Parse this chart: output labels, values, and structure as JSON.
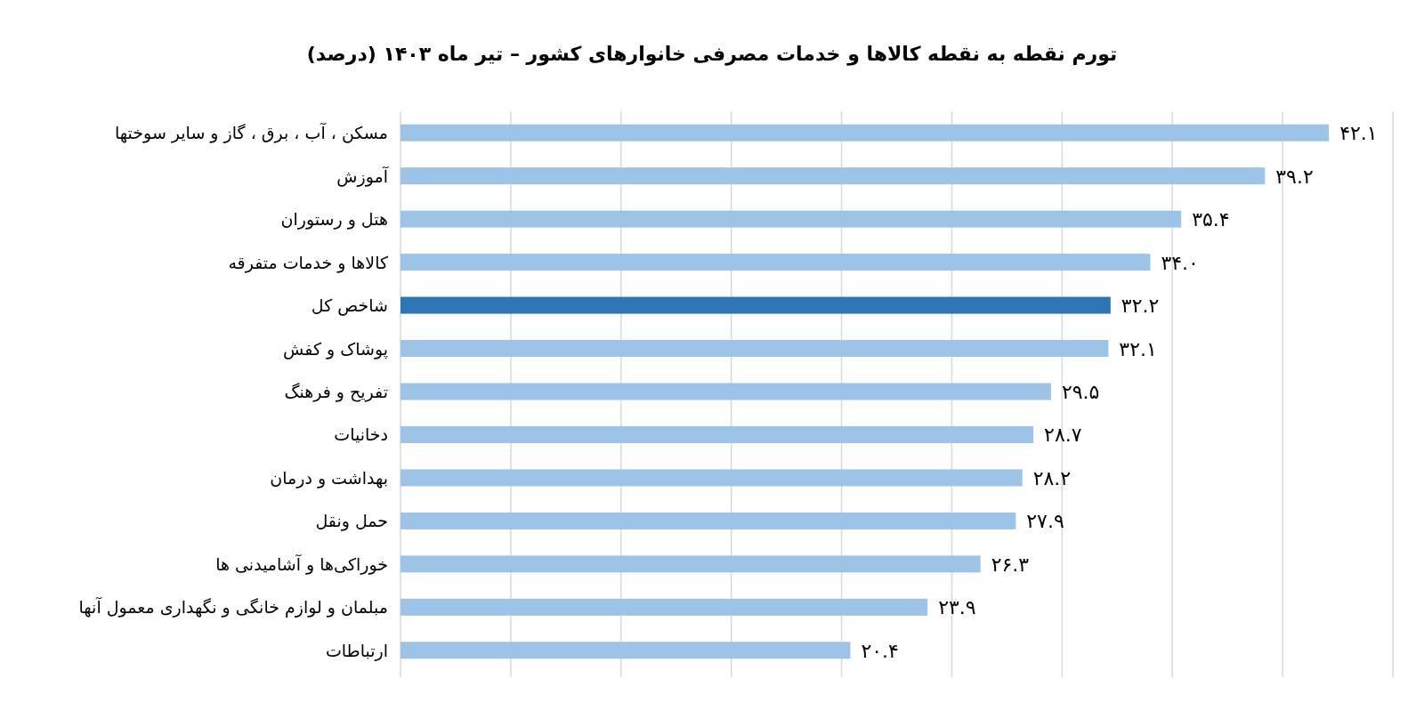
{
  "chart_data": {
    "type": "bar",
    "orientation": "horizontal",
    "title": "تورم نقطه به نقطه کالاها و خدمات مصرفی خانوارهای کشور – تیر ماه ۱۴۰۳ (درصد)",
    "categories": [
      "مسکن ، آب ، برق ، گاز و سایر سوختها",
      "آموزش",
      "هتل و رستوران",
      "کالاها و خدمات متفرقه",
      "شاخص کل",
      "پوشاک و کفش",
      "تفریح و فرهنگ",
      "دخانیات",
      "بهداشت و درمان",
      "حمل ونقل",
      "خوراکی‌ها و آشامیدنی ها",
      "مبلمان و لوازم خانگی و نگهداری معمول آنها",
      "ارتباطات"
    ],
    "values": [
      42.1,
      39.2,
      35.4,
      34.0,
      32.2,
      32.1,
      29.5,
      28.7,
      28.2,
      27.9,
      26.3,
      23.9,
      20.4
    ],
    "value_labels": [
      "۴۲.۱",
      "۳۹.۲",
      "۳۵.۴",
      "۳۴.۰",
      "۳۲.۲",
      "۳۲.۱",
      "۲۹.۵",
      "۲۸.۷",
      "۲۸.۲",
      "۲۷.۹",
      "۲۶.۳",
      "۲۳.۹",
      "۲۰.۴"
    ],
    "colors": [
      "#9dc3e6",
      "#9dc3e6",
      "#9dc3e6",
      "#9dc3e6",
      "#2e75b6",
      "#9dc3e6",
      "#9dc3e6",
      "#9dc3e6",
      "#9dc3e6",
      "#9dc3e6",
      "#9dc3e6",
      "#9dc3e6",
      "#9dc3e6"
    ],
    "xlim": [
      0,
      45
    ],
    "xticks": [
      {
        "value": 0,
        "label": null
      },
      {
        "value": 5,
        "label": null
      },
      {
        "value": 10,
        "label": null
      },
      {
        "value": 15,
        "label": null
      },
      {
        "value": 20,
        "label": null
      },
      {
        "value": 25,
        "label": null
      },
      {
        "value": 30,
        "label": null
      },
      {
        "value": 35,
        "label": null
      },
      {
        "value": 40,
        "label": null
      },
      {
        "value": 45,
        "label": null
      }
    ],
    "grid": "x",
    "tick_labels": "y"
  }
}
